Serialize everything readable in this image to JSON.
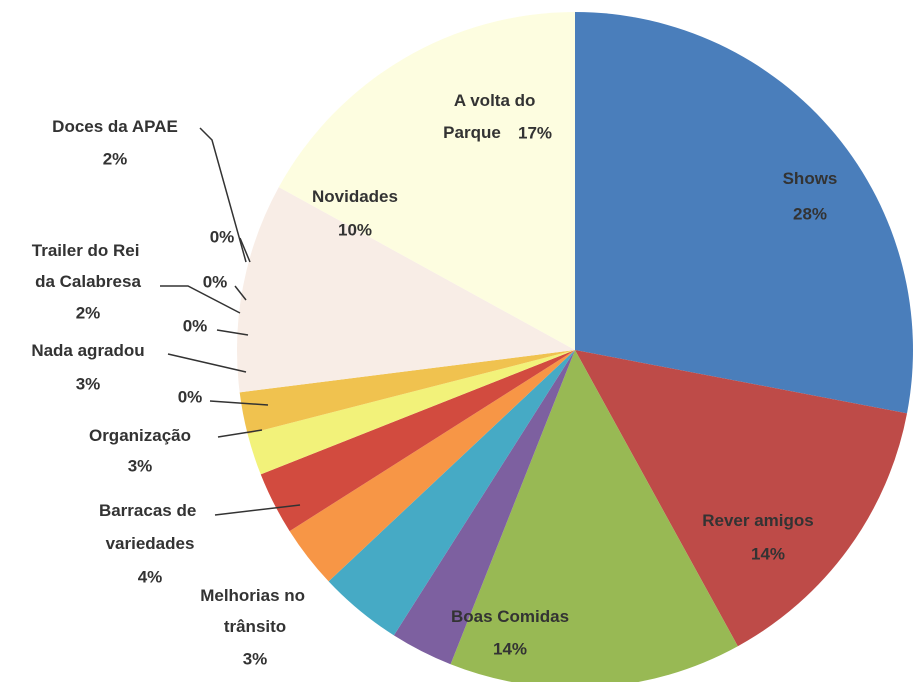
{
  "chart_data": {
    "type": "pie",
    "categories": [
      "Shows",
      "Rever amigos",
      "Boas Comidas",
      "Melhorias no trânsito",
      "Barracas de variedades",
      "Organização",
      null,
      "Nada agradou",
      null,
      "Trailer do Rei da Calabresa",
      null,
      null,
      "Doces da APAE",
      "Novidades",
      "A volta do Parque"
    ],
    "values": [
      28,
      14,
      14,
      3,
      4,
      3,
      0,
      3,
      0,
      2,
      0,
      0,
      2,
      10,
      17
    ],
    "value_labels": [
      "28%",
      "14%",
      "14%",
      "3%",
      "4%",
      "3%",
      "0%",
      "3%",
      "0%",
      "2%",
      "0%",
      "0%",
      "2%",
      "10%",
      "17%"
    ],
    "colors": [
      "#4a7ebb",
      "#be4b48",
      "#98b954",
      "#7d60a0",
      "#46aac5",
      "#f79646",
      "#8064a2",
      "#d24b3f",
      "#4bacc6",
      "#f2f27a",
      "#9bbb59",
      "#c0504d",
      "#f0c24f",
      "#f8ede6",
      "#fdfde0"
    ]
  }
}
